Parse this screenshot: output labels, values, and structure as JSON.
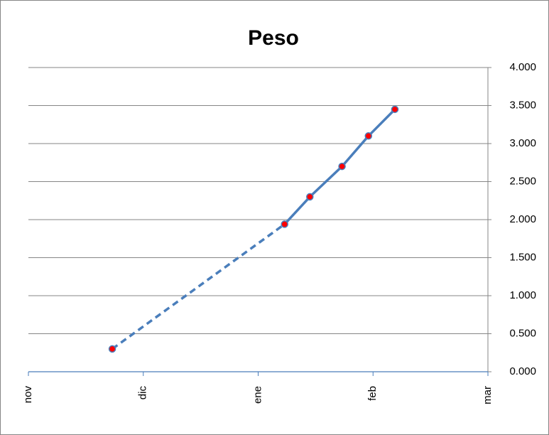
{
  "chart_data": {
    "type": "line",
    "title": "Peso",
    "x": [
      0.73,
      2.23,
      2.45,
      2.73,
      2.96,
      3.19
    ],
    "xlim": [
      0,
      4
    ],
    "xticks": [
      {
        "value": 0,
        "label": "nov"
      },
      {
        "value": 1,
        "label": "dic"
      },
      {
        "value": 2,
        "label": "ene"
      },
      {
        "value": 3,
        "label": "feb"
      },
      {
        "value": 4,
        "label": "mar"
      }
    ],
    "series": [
      {
        "color": "#4a7ebb",
        "marker_color": "#ff0000",
        "values": [
          0.3,
          1.94,
          2.3,
          2.7,
          3.1,
          3.45
        ],
        "dashed_segments": [
          0
        ]
      }
    ],
    "ylim": [
      0,
      4
    ],
    "yticks": [
      {
        "value": 0,
        "label": "0.000"
      },
      {
        "value": 0.5,
        "label": "0.500"
      },
      {
        "value": 1,
        "label": "1.000"
      },
      {
        "value": 1.5,
        "label": "1.500"
      },
      {
        "value": 2,
        "label": "2.000"
      },
      {
        "value": 2.5,
        "label": "2.500"
      },
      {
        "value": 3,
        "label": "3.000"
      },
      {
        "value": 3.5,
        "label": "3.500"
      },
      {
        "value": 4,
        "label": "4.000"
      }
    ],
    "grid": true,
    "y_axis_side": "right"
  }
}
